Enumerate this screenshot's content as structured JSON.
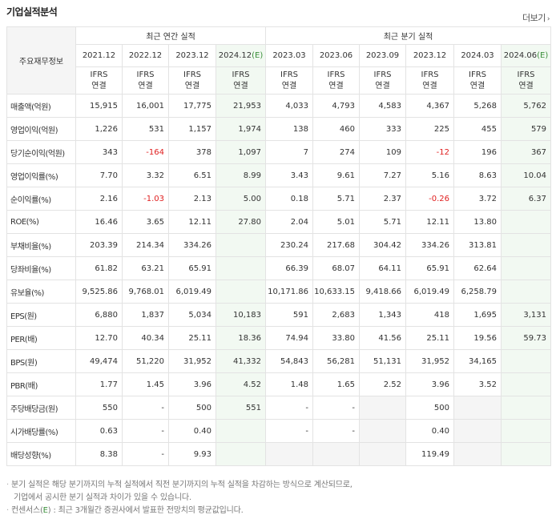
{
  "section_title": "기업실적분석",
  "more_label": "더보기",
  "row_header_label": "주요재무정보",
  "groups": {
    "annual": "최근 연간 실적",
    "quarterly": "최근 분기 실적"
  },
  "periods": [
    "2021.12",
    "2022.12",
    "2023.12",
    "2024.12(E)",
    "2023.03",
    "2023.06",
    "2023.09",
    "2023.12",
    "2024.03",
    "2024.06(E)"
  ],
  "ifrs_line1": "IFRS",
  "ifrs_line2": "연결",
  "rows": [
    {
      "label": "매출액(억원)",
      "values": [
        "15,915",
        "16,001",
        "17,775",
        "21,953",
        "4,033",
        "4,793",
        "4,583",
        "4,367",
        "5,268",
        "5,762"
      ]
    },
    {
      "label": "영업이익(억원)",
      "values": [
        "1,226",
        "531",
        "1,157",
        "1,974",
        "138",
        "460",
        "333",
        "225",
        "455",
        "579"
      ]
    },
    {
      "label": "당기순이익(억원)",
      "values": [
        "343",
        "-164",
        "378",
        "1,097",
        "7",
        "274",
        "109",
        "-12",
        "196",
        "367"
      ]
    },
    {
      "label": "영업이익률(%)",
      "values": [
        "7.70",
        "3.32",
        "6.51",
        "8.99",
        "3.43",
        "9.61",
        "7.27",
        "5.16",
        "8.63",
        "10.04"
      ]
    },
    {
      "label": "순이익률(%)",
      "values": [
        "2.16",
        "-1.03",
        "2.13",
        "5.00",
        "0.18",
        "5.71",
        "2.37",
        "-0.26",
        "3.72",
        "6.37"
      ]
    },
    {
      "label": "ROE(%)",
      "values": [
        "16.46",
        "3.65",
        "12.11",
        "27.80",
        "2.04",
        "5.01",
        "5.71",
        "12.11",
        "13.80",
        ""
      ]
    },
    {
      "label": "부채비율(%)",
      "values": [
        "203.39",
        "214.34",
        "334.26",
        "",
        "230.24",
        "217.68",
        "304.42",
        "334.26",
        "313.81",
        ""
      ]
    },
    {
      "label": "당좌비율(%)",
      "values": [
        "61.82",
        "63.21",
        "65.91",
        "",
        "66.39",
        "68.07",
        "64.11",
        "65.91",
        "62.64",
        ""
      ]
    },
    {
      "label": "유보율(%)",
      "values": [
        "9,525.86",
        "9,768.01",
        "6,019.49",
        "",
        "10,171.86",
        "10,633.15",
        "9,418.66",
        "6,019.49",
        "6,258.79",
        ""
      ]
    },
    {
      "label": "EPS(원)",
      "values": [
        "6,880",
        "1,837",
        "5,034",
        "10,183",
        "591",
        "2,683",
        "1,343",
        "418",
        "1,695",
        "3,131"
      ]
    },
    {
      "label": "PER(배)",
      "values": [
        "12.70",
        "40.34",
        "25.11",
        "18.36",
        "74.94",
        "33.80",
        "41.56",
        "25.11",
        "19.56",
        "59.73"
      ]
    },
    {
      "label": "BPS(원)",
      "values": [
        "49,474",
        "51,220",
        "31,952",
        "41,332",
        "54,843",
        "56,281",
        "51,131",
        "31,952",
        "34,165",
        ""
      ]
    },
    {
      "label": "PBR(배)",
      "values": [
        "1.77",
        "1.45",
        "3.96",
        "4.52",
        "1.48",
        "1.65",
        "2.52",
        "3.96",
        "3.52",
        ""
      ]
    },
    {
      "label": "주당배당금(원)",
      "values": [
        "550",
        "-",
        "500",
        "551",
        "-",
        "-",
        "",
        "500",
        "",
        ""
      ]
    },
    {
      "label": "시가배당률(%)",
      "values": [
        "0.63",
        "-",
        "0.40",
        "",
        "-",
        "-",
        "",
        "0.40",
        "",
        ""
      ]
    },
    {
      "label": "배당성향(%)",
      "values": [
        "8.38",
        "-",
        "9.93",
        "",
        "",
        "",
        "",
        "119.49",
        "",
        ""
      ]
    }
  ],
  "notes": {
    "line1": "분기 실적은 해당 분기까지의 누적 실적에서 직전 분기까지의 누적 실적을 차감하는 방식으로 계산되므로,",
    "line2": "기업에서 공시한 분기 실적과 차이가 있을 수 있습니다.",
    "line3_prefix": "컨센서스(",
    "line3_e": "E",
    "line3_suffix": ") : 최근 3개월간 증권사에서 발표한 전망치의 평균값입니다."
  }
}
